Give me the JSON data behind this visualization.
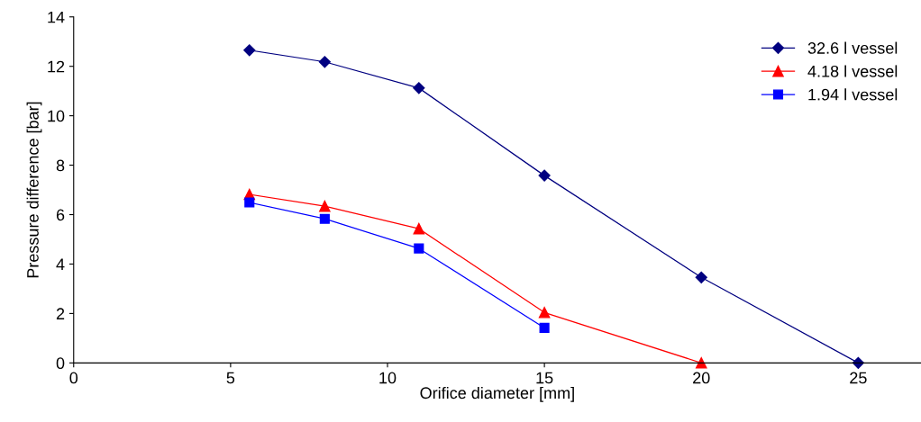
{
  "chart_data": {
    "type": "line",
    "xlabel": "Orifice diameter [mm]",
    "ylabel": "Pressure difference [bar]",
    "xlim": [
      0,
      27
    ],
    "xticks": [
      0,
      5,
      10,
      15,
      20,
      25
    ],
    "ylim": [
      0,
      14
    ],
    "yticks": [
      0,
      2,
      4,
      6,
      8,
      10,
      12,
      14
    ],
    "grid": false,
    "legend": "top right",
    "line_style": "solid",
    "series": [
      {
        "name": "32.6 l vessel",
        "color": "#000080",
        "marker": "diamond",
        "x": [
          5.6,
          8,
          11,
          15,
          20,
          25
        ],
        "values": [
          12.65,
          12.18,
          11.12,
          7.58,
          3.46,
          0
        ]
      },
      {
        "name": "4.18 l vessel",
        "color": "#ff0000",
        "marker": "triangle",
        "x": [
          5.6,
          8,
          11,
          15,
          20
        ],
        "values": [
          6.82,
          6.34,
          5.43,
          2.04,
          0
        ]
      },
      {
        "name": "1.94 l vessel",
        "color": "#0000ff",
        "marker": "square",
        "x": [
          5.6,
          8,
          11,
          15
        ],
        "values": [
          6.49,
          5.83,
          4.63,
          1.42
        ]
      }
    ]
  }
}
